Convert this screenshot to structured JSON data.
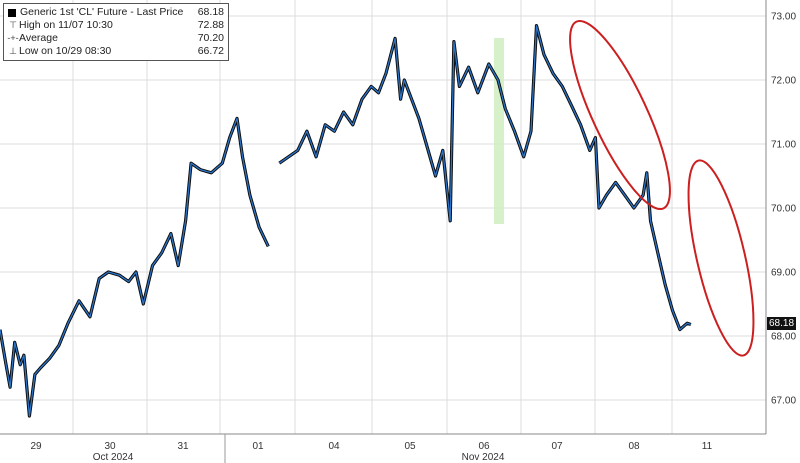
{
  "legend": {
    "series_name": "Generic 1st 'CL' Future - Last Price",
    "last_price": "68.18",
    "high_label": "High on 11/07 10:30",
    "high_value": "72.88",
    "average_label": "Average",
    "average_value": "70.20",
    "low_label": "Low on 10/29 08:30",
    "low_value": "66.72"
  },
  "last_price_tag": "68.18",
  "colors": {
    "line": "#2b74c7",
    "candle": "#0c0c0c",
    "highlight_band": "#cfeec0",
    "annotation_ellipse": "#cc1f1f",
    "grid": "#dcdcdc"
  },
  "chart_data": {
    "type": "line",
    "title": "",
    "xlabel": "",
    "ylabel": "",
    "ylim": [
      66.5,
      73.1
    ],
    "yticks": [
      "67.00",
      "68.00",
      "69.00",
      "70.00",
      "71.00",
      "72.00",
      "73.00"
    ],
    "day_labels": [
      "29",
      "30",
      "31",
      "01",
      "04",
      "05",
      "06",
      "07",
      "08",
      "11"
    ],
    "month_labels": [
      "Oct 2024",
      "Nov 2024"
    ],
    "grid": true,
    "legend_position": "top-left",
    "annotations": [
      "highlight band on 06",
      "ellipse around decline on 07-08",
      "ellipse around decline on 11"
    ],
    "series": [
      {
        "name": "Generic 1st 'CL' Future - Last Price",
        "segments": [
          {
            "points": [
              [
                0,
                68.1
              ],
              [
                0.3,
                67.6
              ],
              [
                0.55,
                67.2
              ],
              [
                0.8,
                67.9
              ],
              [
                1.1,
                67.55
              ],
              [
                1.3,
                67.7
              ],
              [
                1.6,
                66.75
              ],
              [
                1.9,
                67.4
              ],
              [
                2.2,
                67.5
              ],
              [
                2.7,
                67.65
              ],
              [
                3.2,
                67.85
              ],
              [
                3.7,
                68.2
              ],
              [
                4.3,
                68.55
              ],
              [
                4.9,
                68.3
              ],
              [
                5.4,
                68.9
              ],
              [
                5.9,
                69.0
              ],
              [
                6.5,
                68.95
              ],
              [
                7.0,
                68.85
              ],
              [
                7.4,
                69.0
              ],
              [
                7.8,
                68.5
              ],
              [
                8.3,
                69.1
              ],
              [
                8.8,
                69.3
              ],
              [
                9.3,
                69.6
              ],
              [
                9.7,
                69.1
              ],
              [
                10.1,
                69.8
              ],
              [
                10.4,
                70.7
              ],
              [
                10.9,
                70.6
              ],
              [
                11.5,
                70.55
              ],
              [
                12.1,
                70.7
              ],
              [
                12.5,
                71.1
              ],
              [
                12.9,
                71.4
              ],
              [
                13.2,
                70.8
              ],
              [
                13.6,
                70.2
              ],
              [
                14.1,
                69.7
              ],
              [
                14.6,
                69.4
              ]
            ]
          },
          {
            "points": [
              [
                15.2,
                70.7
              ],
              [
                15.7,
                70.8
              ],
              [
                16.2,
                70.9
              ],
              [
                16.7,
                71.2
              ],
              [
                17.2,
                70.8
              ],
              [
                17.7,
                71.3
              ],
              [
                18.2,
                71.2
              ],
              [
                18.7,
                71.5
              ],
              [
                19.2,
                71.3
              ],
              [
                19.7,
                71.7
              ],
              [
                20.2,
                71.9
              ],
              [
                20.6,
                71.8
              ],
              [
                21.0,
                72.1
              ],
              [
                21.5,
                72.65
              ],
              [
                21.8,
                71.7
              ],
              [
                22.0,
                72.0
              ],
              [
                22.4,
                71.7
              ],
              [
                22.8,
                71.4
              ],
              [
                23.2,
                71.0
              ],
              [
                23.7,
                70.5
              ],
              [
                24.1,
                70.9
              ],
              [
                24.5,
                69.8
              ],
              [
                24.7,
                72.6
              ],
              [
                25.0,
                71.9
              ],
              [
                25.5,
                72.2
              ],
              [
                26.0,
                71.8
              ],
              [
                26.6,
                72.25
              ],
              [
                27.1,
                72.0
              ],
              [
                27.5,
                71.55
              ],
              [
                28.0,
                71.2
              ],
              [
                28.5,
                70.8
              ],
              [
                28.9,
                71.2
              ],
              [
                29.2,
                72.85
              ],
              [
                29.6,
                72.4
              ],
              [
                30.1,
                72.1
              ],
              [
                30.6,
                71.9
              ],
              [
                31.1,
                71.6
              ],
              [
                31.6,
                71.3
              ],
              [
                32.1,
                70.9
              ],
              [
                32.4,
                71.1
              ],
              [
                32.6,
                70.0
              ],
              [
                33.0,
                70.2
              ],
              [
                33.5,
                70.4
              ],
              [
                34.0,
                70.2
              ],
              [
                34.5,
                70.0
              ],
              [
                35.0,
                70.2
              ],
              [
                35.2,
                70.55
              ],
              [
                35.4,
                69.8
              ],
              [
                35.8,
                69.3
              ],
              [
                36.2,
                68.8
              ],
              [
                36.6,
                68.4
              ],
              [
                37.0,
                68.1
              ],
              [
                37.4,
                68.2
              ],
              [
                37.6,
                68.18
              ]
            ]
          }
        ]
      }
    ]
  }
}
